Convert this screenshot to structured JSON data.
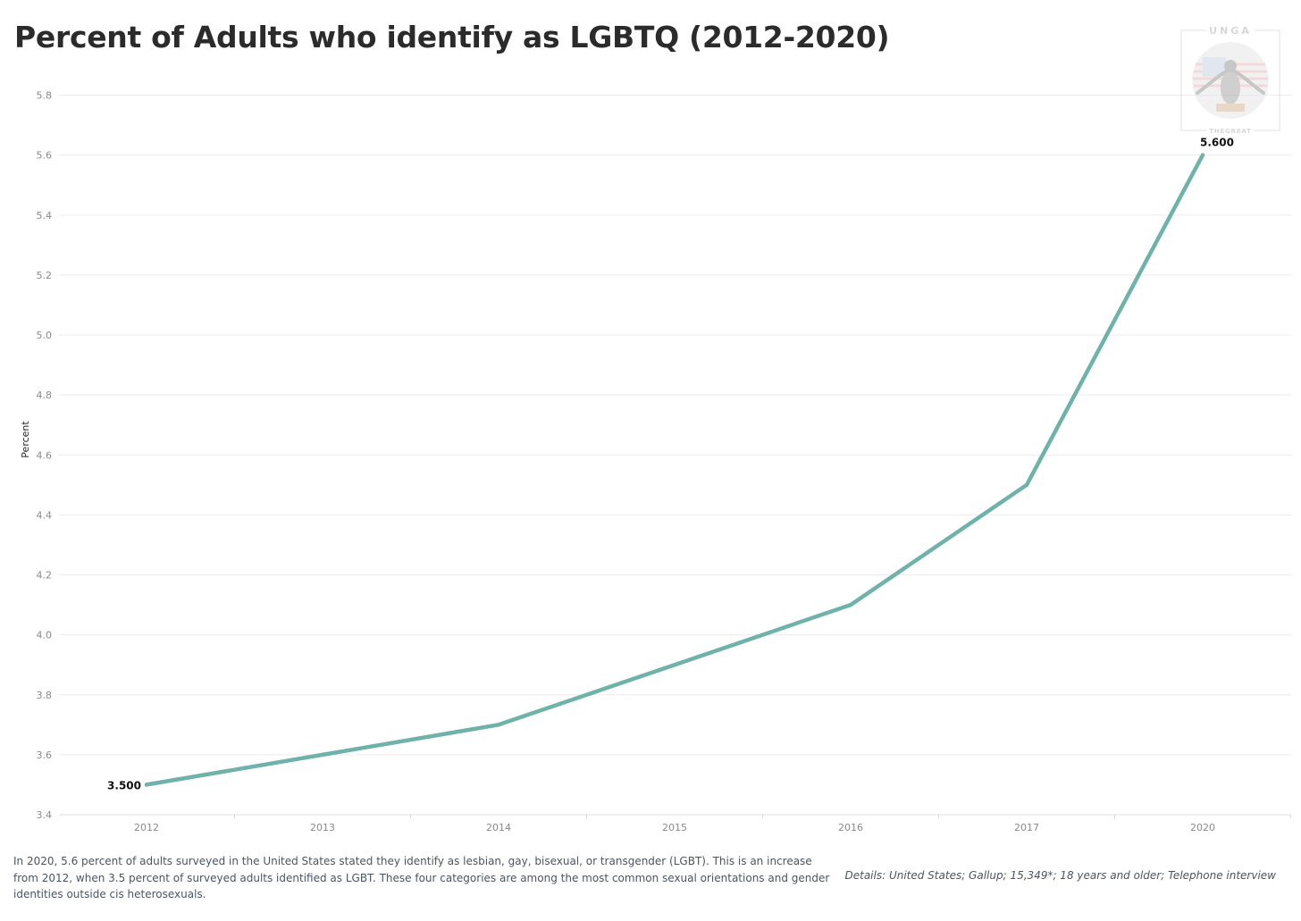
{
  "title": "Percent of Adults who identify as LGBTQ (2012-2020)",
  "chart_data": {
    "type": "line",
    "title": "Percent of Adults who identify as LGBTQ (2012-2020)",
    "xlabel": "",
    "ylabel": "Percent",
    "categories": [
      "2012",
      "2013",
      "2014",
      "2015",
      "2016",
      "2017",
      "2020"
    ],
    "series": [
      {
        "name": "Percent",
        "values": [
          3.5,
          3.6,
          3.7,
          3.9,
          4.1,
          4.5,
          5.6
        ]
      }
    ],
    "ylim": [
      3.4,
      5.8
    ],
    "yticks": [
      3.4,
      3.6,
      3.8,
      4.0,
      4.2,
      4.4,
      4.6,
      4.8,
      5.0,
      5.2,
      5.4,
      5.6,
      5.8
    ],
    "data_labels": [
      {
        "category": "2012",
        "text": "3.500"
      },
      {
        "category": "2020",
        "text": "5.600"
      }
    ],
    "grid": true,
    "line_color": "#6fb2aa"
  },
  "logo": {
    "top_text": "UNGA",
    "bottom_text": "THEGREAT"
  },
  "description": "In 2020, 5.6 percent of adults surveyed in the United States stated they identify as lesbian, gay, bisexual, or transgender (LGBT). This is an increase from 2012, when 3.5 percent of surveyed adults identified as LGBT. These four categories are among the most common sexual orientations and gender identities outside cis heterosexuals.",
  "details": "Details: United States; Gallup; 15,349*; 18 years and older; Telephone interview"
}
